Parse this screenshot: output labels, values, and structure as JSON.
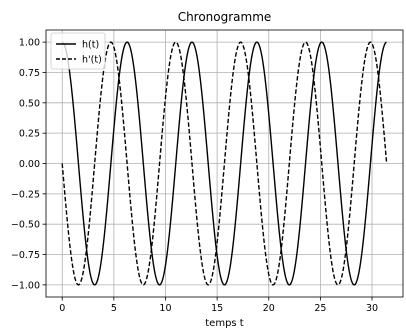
{
  "chart_data": {
    "type": "line",
    "title": "Chronogramme",
    "xlabel": "temps t",
    "ylabel": "",
    "xlim": [
      -1.57,
      33.0
    ],
    "ylim": [
      -1.1,
      1.1
    ],
    "xticks": [
      0,
      5,
      10,
      15,
      20,
      25,
      30
    ],
    "xtick_labels": [
      "0",
      "5",
      "10",
      "15",
      "20",
      "25",
      "30"
    ],
    "yticks": [
      1.0,
      0.75,
      0.5,
      0.25,
      0.0,
      -0.25,
      -0.5,
      -0.75,
      -1.0
    ],
    "ytick_labels": [
      "1.00",
      "0.75",
      "0.50",
      "0.25",
      "0.00",
      "−0.25",
      "−0.50",
      "−0.75",
      "−1.00"
    ],
    "grid": true,
    "legend_position": "top-left",
    "x_range": [
      0,
      31.4
    ],
    "series": [
      {
        "name": "h(t)",
        "function": "sin(t + π/2) = cos(t)",
        "style": "solid",
        "color": "#000000"
      },
      {
        "name": "h'(t)",
        "function": "-sin(t)",
        "style": "dashed",
        "color": "#000000"
      }
    ],
    "sample_points": {
      "t": [
        0,
        1.57,
        3.14,
        4.71,
        6.28,
        7.85,
        9.42,
        11.0,
        12.57,
        14.14,
        15.71,
        17.28,
        18.85,
        20.42,
        21.99,
        23.56,
        25.13,
        26.7,
        28.27,
        29.85,
        31.4
      ],
      "h": [
        1.0,
        0.0,
        -1.0,
        0.0,
        1.0,
        0.0,
        -1.0,
        0.0,
        1.0,
        0.0,
        -1.0,
        0.0,
        1.0,
        0.0,
        -1.0,
        0.0,
        1.0,
        0.0,
        -1.0,
        0.0,
        1.0
      ],
      "h_prime": [
        0.0,
        -1.0,
        0.0,
        1.0,
        0.0,
        -1.0,
        0.0,
        1.0,
        0.0,
        -1.0,
        0.0,
        1.0,
        0.0,
        -1.0,
        0.0,
        1.0,
        0.0,
        -1.0,
        0.0,
        1.0,
        0.0
      ]
    }
  }
}
